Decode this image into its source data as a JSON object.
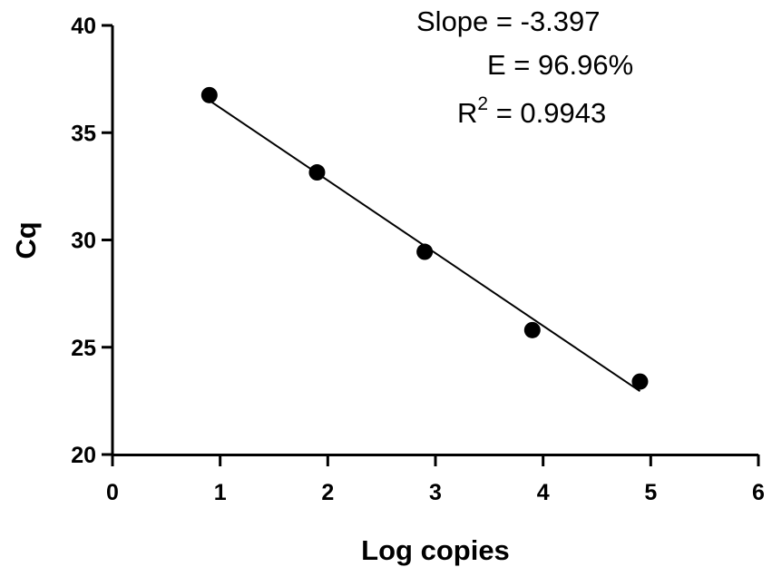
{
  "chart_data": {
    "type": "scatter",
    "xlabel": "Log copies",
    "ylabel": "Cq",
    "xlim": [
      0,
      6
    ],
    "ylim": [
      20,
      40
    ],
    "xticks": [
      0,
      1,
      2,
      3,
      4,
      5,
      6
    ],
    "yticks": [
      20,
      25,
      30,
      35,
      40
    ],
    "grid": false,
    "points": [
      {
        "x": 0.9,
        "y": 36.75
      },
      {
        "x": 1.9,
        "y": 33.15
      },
      {
        "x": 2.9,
        "y": 29.45
      },
      {
        "x": 3.9,
        "y": 25.8
      },
      {
        "x": 4.9,
        "y": 23.4
      }
    ],
    "fit_line": {
      "x0": 0.9,
      "y0": 36.5,
      "x1": 4.9,
      "y1": 22.95
    },
    "annotations": {
      "slope": "Slope = -3.397",
      "efficiency": "E = 96.96%",
      "r2_prefix": "R",
      "r2_exponent": "2",
      "r2_value": " = 0.9943"
    }
  }
}
